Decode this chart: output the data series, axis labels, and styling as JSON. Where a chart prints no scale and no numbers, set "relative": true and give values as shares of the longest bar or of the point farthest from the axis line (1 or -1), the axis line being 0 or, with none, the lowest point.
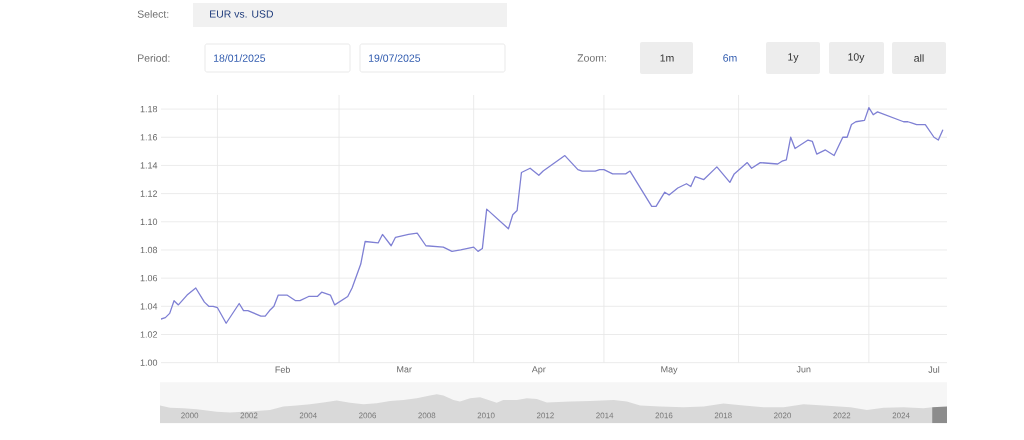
{
  "chart_data": [
    {
      "type": "line",
      "title": "EUR vs. USD",
      "annotations": [
        "Select:",
        "Period:",
        "18/01/2025",
        "19/07/2025",
        "Zoom:",
        "1m",
        "6m",
        "1y",
        "10y",
        "all"
      ],
      "x": [
        "2025-01-19",
        "2025-01-20",
        "2025-01-21",
        "2025-01-22",
        "2025-01-23",
        "2025-01-25",
        "2025-01-27",
        "2025-01-29",
        "2025-01-30",
        "2025-01-31",
        "2025-02-01",
        "2025-02-03",
        "2025-02-06",
        "2025-02-07",
        "2025-02-08",
        "2025-02-11",
        "2025-02-12",
        "2025-02-13",
        "2025-02-14",
        "2025-02-15",
        "2025-02-17",
        "2025-02-19",
        "2025-02-20",
        "2025-02-22",
        "2025-02-24",
        "2025-02-25",
        "2025-02-27",
        "2025-02-28",
        "2025-03-03",
        "2025-03-04",
        "2025-03-06",
        "2025-03-07",
        "2025-03-10",
        "2025-03-11",
        "2025-03-13",
        "2025-03-14",
        "2025-03-17",
        "2025-03-19",
        "2025-03-21",
        "2025-03-25",
        "2025-03-27",
        "2025-03-29",
        "2025-04-01",
        "2025-04-02",
        "2025-04-03",
        "2025-04-04",
        "2025-04-09",
        "2025-04-10",
        "2025-04-11",
        "2025-04-12",
        "2025-04-14",
        "2025-04-16",
        "2025-04-17",
        "2025-04-22",
        "2025-04-25",
        "2025-04-26",
        "2025-04-29",
        "2025-04-30",
        "2025-05-01",
        "2025-05-03",
        "2025-05-06",
        "2025-05-07",
        "2025-05-12",
        "2025-05-13",
        "2025-05-15",
        "2025-05-16",
        "2025-05-18",
        "2025-05-20",
        "2025-05-21",
        "2025-05-22",
        "2025-05-24",
        "2025-05-27",
        "2025-05-30",
        "2025-05-31",
        "2025-06-03",
        "2025-06-04",
        "2025-06-06",
        "2025-06-10",
        "2025-06-11",
        "2025-06-12",
        "2025-06-13",
        "2025-06-14",
        "2025-06-17",
        "2025-06-18",
        "2025-06-19",
        "2025-06-21",
        "2025-06-23",
        "2025-06-25",
        "2025-06-26",
        "2025-06-27",
        "2025-06-28",
        "2025-06-30",
        "2025-07-01",
        "2025-07-02",
        "2025-07-03",
        "2025-07-09",
        "2025-07-10",
        "2025-07-11",
        "2025-07-12",
        "2025-07-14",
        "2025-07-16",
        "2025-07-17",
        "2025-07-18"
      ],
      "values": [
        1.031,
        1.032,
        1.035,
        1.044,
        1.041,
        1.048,
        1.053,
        1.043,
        1.04,
        1.04,
        1.039,
        1.028,
        1.042,
        1.037,
        1.037,
        1.033,
        1.033,
        1.037,
        1.04,
        1.048,
        1.048,
        1.044,
        1.044,
        1.047,
        1.047,
        1.05,
        1.048,
        1.041,
        1.047,
        1.053,
        1.07,
        1.086,
        1.085,
        1.091,
        1.083,
        1.089,
        1.091,
        1.092,
        1.083,
        1.082,
        1.079,
        1.08,
        1.082,
        1.079,
        1.081,
        1.109,
        1.095,
        1.105,
        1.108,
        1.135,
        1.138,
        1.133,
        1.136,
        1.147,
        1.137,
        1.136,
        1.136,
        1.137,
        1.137,
        1.134,
        1.134,
        1.136,
        1.111,
        1.111,
        1.121,
        1.119,
        1.124,
        1.127,
        1.125,
        1.132,
        1.13,
        1.139,
        1.128,
        1.134,
        1.142,
        1.138,
        1.142,
        1.141,
        1.143,
        1.144,
        1.16,
        1.152,
        1.158,
        1.157,
        1.148,
        1.151,
        1.147,
        1.16,
        1.16,
        1.169,
        1.171,
        1.172,
        1.181,
        1.176,
        1.178,
        1.171,
        1.171,
        1.17,
        1.169,
        1.169,
        1.16,
        1.158,
        1.165
      ],
      "color": "#7f80d4",
      "xlim": [
        "2025-01-19",
        "2025-07-19"
      ],
      "ylim": [
        1.0,
        1.19
      ],
      "xticks": [
        {
          "value": "2025-02-01",
          "label": null
        },
        {
          "value": "2025-03-01",
          "label": null
        },
        {
          "value": "2025-04-01",
          "label": null
        },
        {
          "value": "2025-05-01",
          "label": null
        },
        {
          "value": "2025-06-01",
          "label": null
        },
        {
          "value": "2025-07-01",
          "label": null
        },
        {
          "value": "2025-02-16",
          "label": "Feb"
        },
        {
          "value": "2025-03-16",
          "label": "Mar"
        },
        {
          "value": "2025-04-16",
          "label": "Apr"
        },
        {
          "value": "2025-05-16",
          "label": "May"
        },
        {
          "value": "2025-06-16",
          "label": "Jun"
        },
        {
          "value": "2025-07-16",
          "label": "Jul"
        }
      ],
      "yticks": [
        {
          "value": 1.0,
          "label": "1.00"
        },
        1.02,
        1.04,
        1.06,
        1.08,
        {
          "value": 1.1,
          "label": "1.10"
        },
        1.12,
        1.14,
        1.16,
        1.18
      ],
      "grid": true
    },
    {
      "type": "area",
      "relative": true,
      "series": [
        {
          "color": "#d9d9d9",
          "x": [
            1999.0,
            1999.34,
            1999.79,
            2000.24,
            2000.91,
            2001.36,
            2001.81,
            2002.26,
            2002.71,
            2003.16,
            2003.61,
            2004.06,
            2004.51,
            2004.96,
            2005.41,
            2005.86,
            2006.31,
            2006.76,
            2007.21,
            2007.66,
            2008.11,
            2008.34,
            2008.56,
            2008.9,
            2009.12,
            2009.46,
            2009.8,
            2010.36,
            2010.58,
            2011.04,
            2011.38,
            2011.71,
            2012.05,
            2012.84,
            2013.51,
            2014.3,
            2014.75,
            2015.2,
            2015.87,
            2016.66,
            2017.34,
            2018.01,
            2018.69,
            2019.36,
            2020.04,
            2020.71,
            2021.39,
            2022.29,
            2022.85,
            2023.41,
            2024.08,
            2024.76,
            2025.05
          ],
          "values": [
            0.61,
            0.54,
            0.52,
            0.48,
            0.4,
            0.37,
            0.4,
            0.42,
            0.46,
            0.58,
            0.61,
            0.66,
            0.72,
            0.79,
            0.71,
            0.66,
            0.69,
            0.77,
            0.8,
            0.86,
            0.96,
            1.0,
            0.96,
            0.8,
            0.75,
            0.86,
            0.9,
            0.71,
            0.8,
            0.8,
            0.86,
            0.84,
            0.72,
            0.75,
            0.77,
            0.8,
            0.75,
            0.61,
            0.58,
            0.55,
            0.58,
            0.68,
            0.61,
            0.55,
            0.55,
            0.66,
            0.61,
            0.55,
            0.46,
            0.54,
            0.55,
            0.52,
            0.55
          ]
        },
        {
          "color": "#8c8c8c",
          "x": [
            2025.05,
            2025.55
          ],
          "values": [
            0.55,
            0.58
          ]
        }
      ],
      "xlim": [
        1999,
        2025.55
      ],
      "xticks": [
        2000,
        2002,
        2004,
        2006,
        2008,
        2010,
        2012,
        2014,
        2016,
        2018,
        2020,
        2022,
        2024
      ],
      "tick_labels": "x"
    }
  ]
}
